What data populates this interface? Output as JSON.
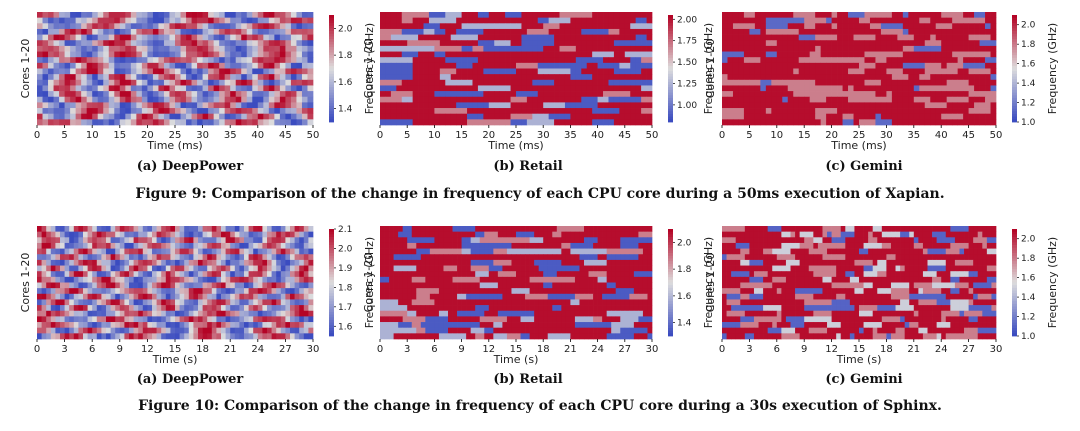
{
  "figures": [
    {
      "caption": "Figure 9: Comparison of the change in frequency of each CPU core during a 50ms execution of Xapian.",
      "subcaptions": [
        "(a) DeepPower",
        "(b) Retail",
        "(c) Gemini"
      ]
    },
    {
      "caption": "Figure 10: Comparison of the change in frequency of each CPU core during a 30s execution of Sphinx.",
      "subcaptions": [
        "(a) DeepPower",
        "(b) Retail",
        "(c) Gemini"
      ]
    }
  ],
  "colors": {
    "low": "#3b4cc0",
    "mid": "#dddddd",
    "high": "#b40426"
  },
  "chart_data": [
    {
      "type": "heatmap",
      "name": "Xapian DeepPower",
      "xlabel": "Time (ms)",
      "ylabel": "Cores 1-20",
      "cbar_label": "Frequency (GHz)",
      "x_ticks": [
        "0",
        "5",
        "10",
        "15",
        "20",
        "25",
        "30",
        "35",
        "40",
        "45",
        "50"
      ],
      "cbar_ticks": [
        "1.4",
        "1.6",
        "1.8",
        "2.0"
      ],
      "vmin": 1.3,
      "vmax": 2.1,
      "rows": 20,
      "cols": 50,
      "pattern": "smooth",
      "seed": 11
    },
    {
      "type": "heatmap",
      "name": "Xapian Retail",
      "xlabel": "Time (ms)",
      "ylabel": "Cores 1-20",
      "cbar_label": "Frequency (GHz)",
      "x_ticks": [
        "0",
        "5",
        "10",
        "15",
        "20",
        "25",
        "30",
        "35",
        "40",
        "45",
        "50"
      ],
      "cbar_ticks": [
        "1.00",
        "1.25",
        "1.50",
        "1.75",
        "2.00"
      ],
      "vmin": 0.8,
      "vmax": 2.05,
      "rows": 20,
      "cols": 50,
      "pattern": "discrete",
      "seed": 23
    },
    {
      "type": "heatmap",
      "name": "Xapian Gemini",
      "xlabel": "Time (ms)",
      "ylabel": "Cores 1-20",
      "cbar_label": "Frequency (GHz)",
      "x_ticks": [
        "0",
        "5",
        "10",
        "15",
        "20",
        "25",
        "30",
        "35",
        "40",
        "45",
        "50"
      ],
      "cbar_ticks": [
        "1.0",
        "1.2",
        "1.4",
        "1.6",
        "1.8",
        "2.0"
      ],
      "vmin": 1.0,
      "vmax": 2.1,
      "rows": 20,
      "cols": 50,
      "pattern": "gemini",
      "seed": 37
    },
    {
      "type": "heatmap",
      "name": "Sphinx DeepPower",
      "xlabel": "Time (s)",
      "ylabel": "Cores 1-20",
      "cbar_label": "Frequency (GHz)",
      "x_ticks": [
        "0",
        "3",
        "6",
        "9",
        "12",
        "15",
        "18",
        "21",
        "24",
        "27",
        "30"
      ],
      "cbar_ticks": [
        "1.6",
        "1.7",
        "1.8",
        "1.9",
        "2.0",
        "2.1"
      ],
      "vmin": 1.55,
      "vmax": 2.1,
      "rows": 20,
      "cols": 60,
      "pattern": "smooth",
      "seed": 51
    },
    {
      "type": "heatmap",
      "name": "Sphinx Retail",
      "xlabel": "Time (s)",
      "ylabel": "Cores 1-20",
      "cbar_label": "Frequency (GHz)",
      "x_ticks": [
        "0",
        "3",
        "6",
        "9",
        "12",
        "15",
        "18",
        "21",
        "24",
        "27",
        "30"
      ],
      "cbar_ticks": [
        "1.4",
        "1.6",
        "1.8",
        "2.0"
      ],
      "vmin": 1.3,
      "vmax": 2.1,
      "rows": 20,
      "cols": 60,
      "pattern": "discrete",
      "seed": 67
    },
    {
      "type": "heatmap",
      "name": "Sphinx Gemini",
      "xlabel": "Time (s)",
      "ylabel": "Cores 1-20",
      "cbar_label": "Frequency (GHz)",
      "x_ticks": [
        "0",
        "3",
        "6",
        "9",
        "12",
        "15",
        "18",
        "21",
        "24",
        "27",
        "30"
      ],
      "cbar_ticks": [
        "1.0",
        "1.2",
        "1.4",
        "1.6",
        "1.8",
        "2.0"
      ],
      "vmin": 1.0,
      "vmax": 2.1,
      "rows": 20,
      "cols": 60,
      "pattern": "gemini2",
      "seed": 79
    }
  ]
}
